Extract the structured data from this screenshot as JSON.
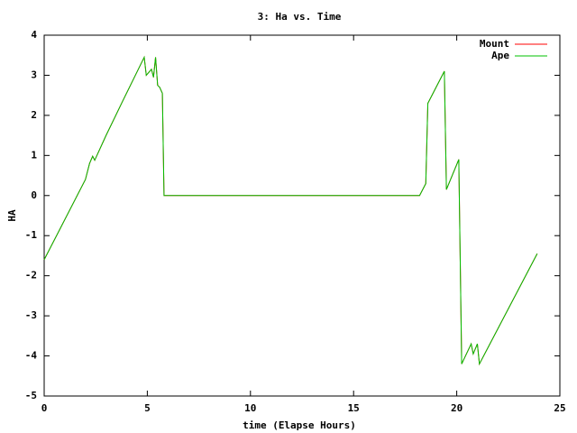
{
  "chart_data": {
    "type": "line",
    "title": "3: Ha vs. Time",
    "x_label": "time (Elapse Hours)",
    "y_label": "HA",
    "x": [
      0,
      2.0,
      2.2,
      2.35,
      2.45,
      3.0,
      3.8,
      4.85,
      4.95,
      5.2,
      5.3,
      5.4,
      5.5,
      5.6,
      5.73,
      5.81,
      18.2,
      18.5,
      18.6,
      19.0,
      19.4,
      19.5,
      20.1,
      20.24,
      20.7,
      20.8,
      21.0,
      21.1,
      23.9
    ],
    "series": [
      {
        "name": "Mount",
        "color": "#ff0000",
        "values": [
          -1.6,
          0.4,
          0.8,
          0.98,
          0.88,
          1.5,
          2.35,
          3.45,
          3.0,
          3.15,
          2.95,
          3.45,
          2.75,
          2.7,
          2.55,
          0,
          0,
          0.3,
          2.3,
          2.7,
          3.1,
          0.15,
          0.9,
          -4.2,
          -3.7,
          -3.95,
          -3.7,
          -4.2,
          -1.45
        ]
      },
      {
        "name": "Ape",
        "color": "#00c000",
        "values": [
          -1.6,
          0.4,
          0.8,
          0.98,
          0.88,
          1.5,
          2.35,
          3.45,
          3.0,
          3.15,
          2.95,
          3.45,
          2.75,
          2.7,
          2.55,
          0,
          0,
          0.3,
          2.3,
          2.7,
          3.1,
          0.15,
          0.9,
          -4.2,
          -3.7,
          -3.95,
          -3.7,
          -4.2,
          -1.45
        ]
      }
    ],
    "xlim": [
      0,
      25
    ],
    "xticks": [
      0,
      5,
      10,
      15,
      20,
      25
    ],
    "ylim": [
      -5,
      4
    ],
    "yticks": [
      -5,
      -4,
      -3,
      -2,
      -1,
      0,
      1,
      2,
      3,
      4
    ],
    "legend": "upper right",
    "grid": false
  }
}
